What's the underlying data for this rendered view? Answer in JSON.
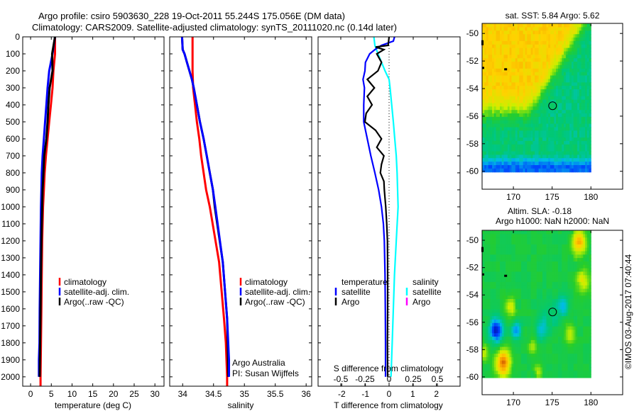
{
  "title": {
    "line1": "Argo profile: csiro 5903630_228 19-Oct-2011 55.244S 175.056E (DM data)",
    "line2": "Climatology: CARS2009. Satellite-adjusted climatology: synTS_20111020.nc (0.14d later)"
  },
  "colors": {
    "climatology": "#ff0000",
    "satellite": "#0000ff",
    "argo": "#000000",
    "s_satellite": "#00ffff",
    "s_argo": "#ff00ff"
  },
  "credit": "©IMOS 03-Aug-2017 07:40:44",
  "annotation": {
    "line1": "Argo Australia",
    "line2": "PI: Susan Wijffels"
  },
  "depth_ticks": [
    "0",
    "100",
    "200",
    "300",
    "400",
    "500",
    "600",
    "700",
    "800",
    "900",
    "1000",
    "1100",
    "1200",
    "1300",
    "1400",
    "1500",
    "1600",
    "1700",
    "1800",
    "1900",
    "2000"
  ],
  "chart_data": [
    {
      "type": "line",
      "name": "temperature-profile",
      "xlabel": "temperature (deg C)",
      "ylabel": "",
      "xlim": [
        -1.9,
        32.2
      ],
      "ylim": [
        2055,
        0
      ],
      "xticks": [
        0,
        5,
        10,
        15,
        20,
        25,
        30
      ],
      "xtick_labels": [
        "0",
        "5",
        "10",
        "15",
        "20",
        "25",
        "30"
      ],
      "legend": [
        "climatology",
        "satellite-adj. clim.",
        "Argo(..raw -QC)"
      ],
      "series": [
        {
          "name": "climatology",
          "color": "#ff0000",
          "depth": [
            0,
            100,
            200,
            300,
            400,
            500,
            600,
            700,
            800,
            900,
            1000,
            1200,
            1400,
            1600,
            1800,
            2000,
            2055
          ],
          "values": [
            5.9,
            5.9,
            5.5,
            5.3,
            4.9,
            4.5,
            4.1,
            3.7,
            3.4,
            3.2,
            3.0,
            2.8,
            2.7,
            2.6,
            2.5,
            2.4,
            2.4
          ]
        },
        {
          "name": "satellite-adj. clim.",
          "color": "#0000ff",
          "depth": [
            0,
            100,
            200,
            300,
            400,
            500,
            600,
            700,
            800,
            900,
            1000,
            1200,
            1400,
            1600,
            1800,
            1900,
            2000
          ],
          "values": [
            5.9,
            5.3,
            4.5,
            4.1,
            3.8,
            3.5,
            3.2,
            2.9,
            2.7,
            2.6,
            2.5,
            2.4,
            2.3,
            2.2,
            2.15,
            2.0,
            2.0
          ]
        },
        {
          "name": "Argo(..raw -QC)",
          "color": "#000000",
          "depth": [
            0,
            100,
            200,
            300,
            400,
            500,
            600,
            700,
            800,
            900,
            1000,
            1200,
            1400,
            1600,
            1800,
            2000
          ],
          "values": [
            5.9,
            5.2,
            5.3,
            4.6,
            4.3,
            4.1,
            3.8,
            3.3,
            3.1,
            2.9,
            2.8,
            2.6,
            2.5,
            2.4,
            2.3,
            2.2
          ]
        }
      ]
    },
    {
      "type": "line",
      "name": "salinity-profile",
      "xlabel": "salinity",
      "ylabel": "",
      "xlim": [
        33.79,
        36.09
      ],
      "ylim": [
        2055,
        0
      ],
      "xticks": [
        34,
        34.5,
        35,
        35.5,
        36
      ],
      "xtick_labels": [
        "34",
        "34.5",
        "35",
        "35.5",
        "36"
      ],
      "legend": [
        "climatology",
        "satellite-adj. clim.",
        "Argo(..raw -QC)"
      ],
      "series": [
        {
          "name": "climatology",
          "color": "#ff0000",
          "depth": [
            0,
            200,
            300,
            400,
            500,
            600,
            700,
            800,
            900,
            1000,
            1325,
            1658,
            1800,
            2000,
            2055
          ],
          "values": [
            34.16,
            34.16,
            34.17,
            34.2,
            34.23,
            34.27,
            34.3,
            34.34,
            34.38,
            34.44,
            34.59,
            34.67,
            34.7,
            34.72,
            34.72
          ]
        },
        {
          "name": "Argo(..raw -QC)",
          "color": "#000000",
          "depth": [
            0,
            75,
            100,
            150,
            200,
            250,
            300,
            400,
            500,
            600,
            700,
            800,
            900,
            1000,
            1325,
            1658,
            2000
          ],
          "values": [
            33.99,
            34.0,
            34.03,
            34.07,
            34.11,
            34.15,
            34.18,
            34.23,
            34.28,
            34.34,
            34.39,
            34.44,
            34.49,
            34.52,
            34.65,
            34.72,
            34.74
          ]
        },
        {
          "name": "satellite-adj. clim.",
          "color": "#0000ff",
          "depth": [
            0,
            75,
            100,
            150,
            200,
            250,
            300,
            400,
            500,
            600,
            700,
            800,
            900,
            1000,
            1325,
            1658,
            1900,
            2000
          ],
          "values": [
            33.99,
            34.0,
            34.03,
            34.07,
            34.11,
            34.15,
            34.18,
            34.23,
            34.28,
            34.34,
            34.39,
            34.44,
            34.49,
            34.53,
            34.65,
            34.72,
            34.75,
            34.75
          ]
        }
      ]
    },
    {
      "type": "line",
      "name": "difference-profile",
      "xlabel": "T difference from climatology",
      "x2label": "S difference from climatology",
      "xlim": [
        -3,
        3
      ],
      "x2lim": [
        -0.735,
        0.735
      ],
      "ylim": [
        2055,
        0
      ],
      "xticks": [
        -2,
        -1,
        0,
        1,
        2
      ],
      "xtick_labels": [
        "-2",
        "-1",
        "0",
        "1",
        "2"
      ],
      "x2ticks": [
        -0.5,
        -0.25,
        0,
        0.25,
        0.5
      ],
      "x2tick_labels": [
        "-0.5",
        "-0.25",
        "0",
        "0.25",
        "0.5"
      ],
      "legend": {
        "temperature": "temperature",
        "t_satellite": "satellite",
        "t_argo": "Argo",
        "salinity": "salinity",
        "s_satellite": "satellite",
        "s_argo": "Argo"
      },
      "series": [
        {
          "name": "S satellite",
          "axis": "S",
          "color": "#00ffff",
          "depth": [
            0,
            50,
            100,
            150,
            200,
            250,
            300,
            400,
            500,
            600,
            700,
            800,
            900,
            1000,
            1200,
            1400,
            1600,
            1800,
            2000
          ],
          "values": [
            -0.157,
            -0.147,
            -0.115,
            -0.078,
            -0.042,
            0,
            0.01,
            0.027,
            0.044,
            0.059,
            0.074,
            0.083,
            0.088,
            0.093,
            0.074,
            0.056,
            0.044,
            0.032,
            0.02
          ]
        },
        {
          "name": "T satellite",
          "axis": "T",
          "color": "#0000ff",
          "depth": [
            0,
            25,
            50,
            75,
            100,
            150,
            200,
            250,
            300,
            400,
            500,
            600,
            700,
            800,
            900,
            1000,
            1100,
            1200,
            1400,
            1600,
            1800,
            2000
          ],
          "values": [
            0.23,
            0.18,
            -0.32,
            -0.6,
            -0.82,
            -1.0,
            -1.02,
            -1.1,
            -1.04,
            -1.07,
            -1.07,
            -0.92,
            -0.77,
            -0.6,
            -0.44,
            -0.32,
            -0.24,
            -0.2,
            -0.17,
            -0.16,
            -0.15,
            -0.15
          ]
        },
        {
          "name": "T Argo",
          "axis": "T",
          "color": "#000000",
          "depth": [
            0,
            50,
            60,
            75,
            100,
            150,
            200,
            250,
            300,
            350,
            400,
            450,
            500,
            550,
            600,
            650,
            700,
            750,
            800,
            850,
            900,
            1000,
            1100,
            1200,
            1400,
            1600,
            1800,
            2000
          ],
          "values": [
            0,
            -0.04,
            -0.57,
            -0.22,
            -0.52,
            -0.32,
            -0.47,
            -0.92,
            -0.62,
            -0.92,
            -0.72,
            -0.97,
            -1.02,
            -0.57,
            -0.32,
            -0.52,
            -0.22,
            -0.32,
            -0.37,
            -0.22,
            -0.2,
            -0.14,
            -0.1,
            -0.07,
            -0.06,
            -0.06,
            -0.07,
            -0.06
          ]
        }
      ]
    },
    {
      "type": "heatmap",
      "name": "sst-map",
      "title": "sat. SST: 5.84 Argo: 5.62",
      "xlim": [
        165.96,
        184.1
      ],
      "ylim": [
        -61.3,
        -49.27
      ],
      "xticks": [
        170,
        175,
        180
      ],
      "xtick_labels": [
        "170",
        "175",
        "180"
      ],
      "yticks": [
        -50,
        -52,
        -54,
        -56,
        -58,
        -60
      ],
      "ytick_labels": [
        "-50",
        "-52",
        "-54",
        "-56",
        "-58",
        "-60"
      ],
      "data_extent": {
        "lon": [
          166,
          180
        ],
        "lat": [
          -60,
          -49.3
        ]
      },
      "profile_location": {
        "lon": 175.056,
        "lat": -55.244
      }
    },
    {
      "type": "heatmap",
      "name": "sla-map",
      "title": "Altim. SLA: -0.18",
      "subtitle": "Argo h1000: NaN h2000: NaN",
      "xlim": [
        165.96,
        184.1
      ],
      "ylim": [
        -61.3,
        -49.27
      ],
      "xticks": [
        170,
        175,
        180
      ],
      "xtick_labels": [
        "170",
        "175",
        "180"
      ],
      "yticks": [
        -50,
        -52,
        -54,
        -56,
        -58,
        -60
      ],
      "ytick_labels": [
        "-50",
        "-52",
        "-54",
        "-56",
        "-58",
        "-60"
      ],
      "data_extent": {
        "lon": [
          166,
          180
        ],
        "lat": [
          -60,
          -49.3
        ]
      },
      "profile_location": {
        "lon": 175.056,
        "lat": -55.244
      }
    }
  ]
}
